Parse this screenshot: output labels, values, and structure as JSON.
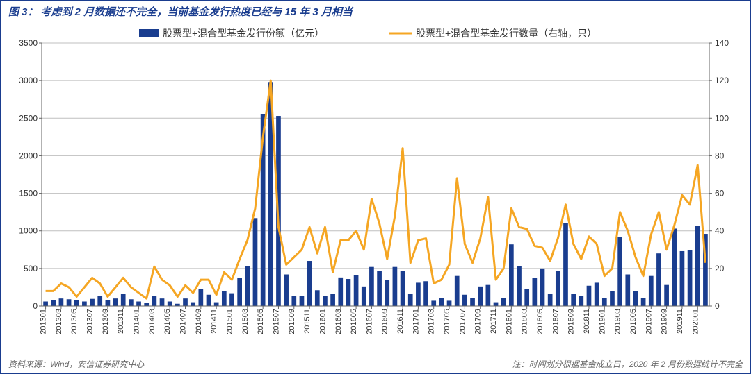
{
  "title": {
    "label": "图 3：",
    "text": "考虑到 2 月数据还不完全，当前基金发行热度已经与 15 年 3 月相当",
    "color": "#1a3d8f",
    "fontsize": 15
  },
  "footer": {
    "source": "资料来源：Wind，安信证券研究中心",
    "note": "注：时间划分根据基金成立日，2020 年 2 月份数据统计不完全",
    "color": "#666666",
    "fontsize": 12
  },
  "chart": {
    "type": "bar+line",
    "background_color": "#ffffff",
    "border_color": "#1a3d8f",
    "grid_color": "#bfbfbf",
    "axis_color": "#666666",
    "y_left": {
      "min": 0,
      "max": 3500,
      "step": 500,
      "fontsize": 12
    },
    "y_right": {
      "min": 0,
      "max": 140,
      "step": 20,
      "fontsize": 12
    },
    "x_labels": [
      "201301",
      "201303",
      "201305",
      "201307",
      "201309",
      "201311",
      "201401",
      "201403",
      "201405",
      "201407",
      "201409",
      "201411",
      "201501",
      "201503",
      "201505",
      "201507",
      "201509",
      "201511",
      "201601",
      "201603",
      "201605",
      "201607",
      "201609",
      "201611",
      "201701",
      "201703",
      "201705",
      "201707",
      "201709",
      "201711",
      "201801",
      "201803",
      "201805",
      "201807",
      "201809",
      "201811",
      "201901",
      "201903",
      "201905",
      "201907",
      "201909",
      "201911",
      "202001"
    ],
    "categories": [
      "201301",
      "201302",
      "201303",
      "201304",
      "201305",
      "201306",
      "201307",
      "201308",
      "201309",
      "201310",
      "201311",
      "201312",
      "201401",
      "201402",
      "201403",
      "201404",
      "201405",
      "201406",
      "201407",
      "201408",
      "201409",
      "201410",
      "201411",
      "201412",
      "201501",
      "201502",
      "201503",
      "201504",
      "201505",
      "201506",
      "201507",
      "201508",
      "201509",
      "201510",
      "201511",
      "201512",
      "201601",
      "201602",
      "201603",
      "201604",
      "201605",
      "201606",
      "201607",
      "201608",
      "201609",
      "201610",
      "201611",
      "201612",
      "201701",
      "201702",
      "201703",
      "201704",
      "201705",
      "201706",
      "201707",
      "201708",
      "201709",
      "201710",
      "201711",
      "201712",
      "201801",
      "201802",
      "201803",
      "201804",
      "201805",
      "201806",
      "201807",
      "201808",
      "201809",
      "201810",
      "201811",
      "201812",
      "201901",
      "201902",
      "201903",
      "201904",
      "201905",
      "201906",
      "201907",
      "201908",
      "201909",
      "201910",
      "201911",
      "201912",
      "202001",
      "202002"
    ],
    "bar_series": {
      "name": "股票型+混合型基金发行份额（亿元）",
      "color": "#1a3d8f",
      "bar_width_ratio": 0.6,
      "values": [
        60,
        80,
        100,
        90,
        80,
        60,
        95,
        130,
        80,
        100,
        160,
        90,
        60,
        40,
        130,
        100,
        60,
        30,
        100,
        50,
        230,
        150,
        50,
        200,
        170,
        370,
        530,
        1170,
        2550,
        2980,
        2530,
        420,
        130,
        130,
        600,
        210,
        130,
        160,
        380,
        360,
        410,
        260,
        520,
        470,
        350,
        520,
        470,
        160,
        310,
        330,
        70,
        110,
        70,
        400,
        150,
        110,
        260,
        280,
        50,
        110,
        820,
        530,
        230,
        370,
        500,
        160,
        470,
        1100,
        160,
        130,
        270,
        310,
        110,
        200,
        920,
        420,
        200,
        110,
        400,
        700,
        280,
        1030,
        730,
        740,
        1070,
        960
      ]
    },
    "line_series": {
      "name": "股票型+混合型基金发行数量（右轴，只）",
      "color": "#f5a623",
      "line_width": 3,
      "values": [
        8,
        8,
        12,
        10,
        5,
        10,
        15,
        12,
        5,
        10,
        15,
        10,
        7,
        4,
        21,
        14,
        11,
        5,
        11,
        7,
        14,
        14,
        6,
        18,
        14,
        25,
        35,
        52,
        90,
        120,
        42,
        22,
        26,
        30,
        42,
        28,
        42,
        18,
        35,
        35,
        40,
        30,
        57,
        44,
        25,
        48,
        84,
        23,
        35,
        36,
        12,
        14,
        22,
        68,
        33,
        23,
        36,
        58,
        14,
        20,
        52,
        42,
        41,
        32,
        31,
        24,
        36,
        54,
        33,
        25,
        37,
        33,
        16,
        20,
        50,
        40,
        26,
        16,
        38,
        50,
        30,
        43,
        59,
        54,
        75,
        23
      ]
    },
    "legend": {
      "bar_label": "股票型+混合型基金发行份额（亿元）",
      "line_label": "股票型+混合型基金发行数量（右轴，只）",
      "fontsize": 14
    }
  }
}
